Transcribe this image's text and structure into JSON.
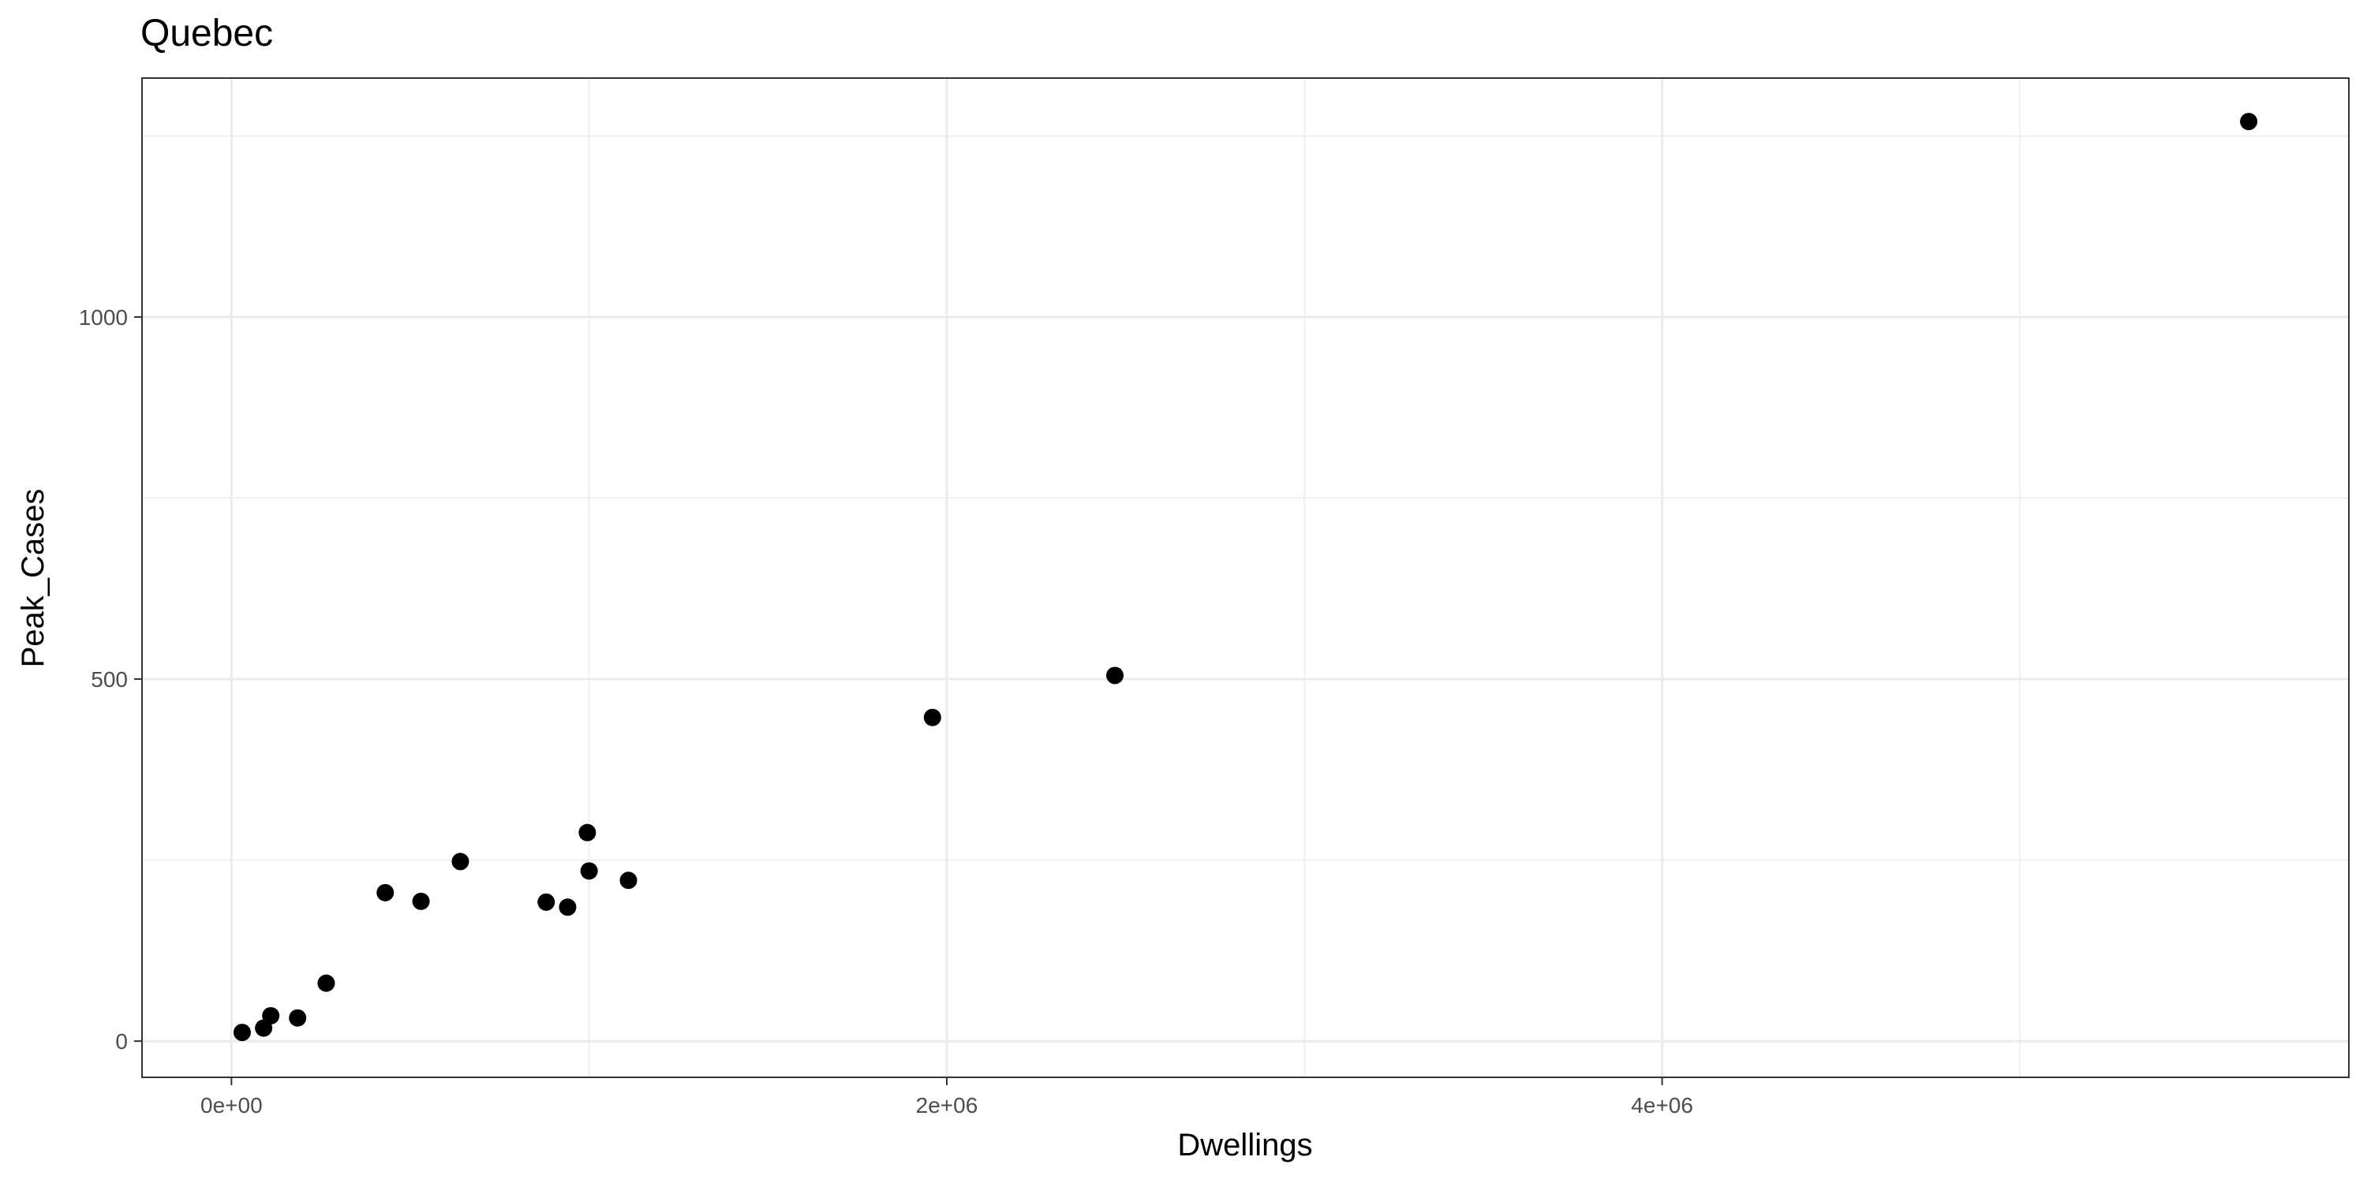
{
  "chart_data": {
    "type": "scatter",
    "title": "Quebec",
    "xlabel": "Dwellings",
    "ylabel": "Peak_Cases",
    "xlim": [
      -250000,
      5920000
    ],
    "ylim": [
      -50,
      1330
    ],
    "x_ticks": [
      0,
      2000000,
      4000000
    ],
    "x_tick_labels": [
      "0e+00",
      "2e+06",
      "4e+06"
    ],
    "x_minor": [
      1000000,
      3000000,
      5000000
    ],
    "y_ticks": [
      0,
      500,
      1000
    ],
    "y_tick_labels": [
      "0",
      "500",
      "1000"
    ],
    "y_minor": [
      250,
      750,
      1250
    ],
    "grid": true,
    "points": [
      {
        "x": 30000,
        "y": 12
      },
      {
        "x": 90000,
        "y": 18
      },
      {
        "x": 110000,
        "y": 35
      },
      {
        "x": 185000,
        "y": 32
      },
      {
        "x": 265000,
        "y": 80
      },
      {
        "x": 430000,
        "y": 205
      },
      {
        "x": 530000,
        "y": 193
      },
      {
        "x": 640000,
        "y": 248
      },
      {
        "x": 880000,
        "y": 192
      },
      {
        "x": 940000,
        "y": 185
      },
      {
        "x": 995000,
        "y": 288
      },
      {
        "x": 1000000,
        "y": 235
      },
      {
        "x": 1110000,
        "y": 222
      },
      {
        "x": 1960000,
        "y": 447
      },
      {
        "x": 2470000,
        "y": 505
      },
      {
        "x": 5640000,
        "y": 1270
      }
    ]
  },
  "colors": {
    "points": "#000000",
    "grid": "#ebebeb",
    "panel_border": "#333333",
    "tick_label": "#4d4d4d"
  }
}
